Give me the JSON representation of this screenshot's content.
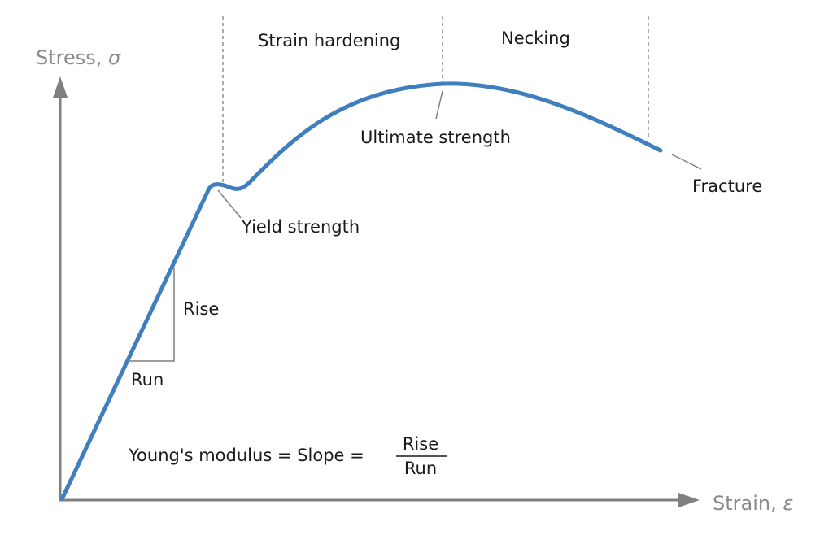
{
  "axes": {
    "y_label": "Stress, ",
    "y_symbol": "σ",
    "x_label": "Strain, ",
    "x_symbol": "ε",
    "color": "#808080"
  },
  "regions": {
    "strain_hardening": "Strain hardening",
    "necking": "Necking"
  },
  "points": {
    "ultimate_strength": "Ultimate strength",
    "yield_strength": "Yield strength",
    "fracture": "Fracture"
  },
  "slope": {
    "rise": "Rise",
    "run": "Run"
  },
  "formula": {
    "text": "Young's modulus = Slope =",
    "numerator": "Rise",
    "denominator": "Run"
  },
  "colors": {
    "curve": "#3f7fbf",
    "leader": "#7f7f7f",
    "text": "#1a1a1a"
  }
}
